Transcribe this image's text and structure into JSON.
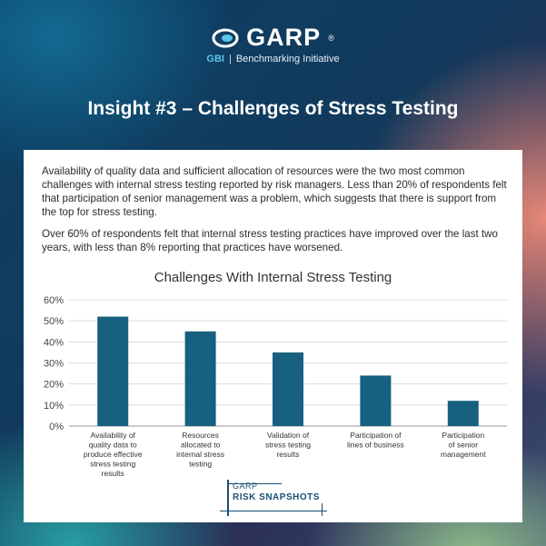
{
  "brand": {
    "logo": "GARP",
    "reg": "®",
    "sub_code": "GBI",
    "sub_sep": "|",
    "sub_name": "Benchmarking Initiative"
  },
  "title": "Insight #3 – Challenges of Stress Testing",
  "paragraphs": [
    "Availability of quality data and sufficient allocation of resources were the two most common challenges with internal stress testing reported by risk managers. Less than 20% of respondents felt that participation of senior management was a problem, which suggests that there is support from the top for stress testing.",
    "Over 60% of respondents felt that internal stress testing practices have improved over the last two years, with less than 8% reporting that practices have worsened."
  ],
  "chart_data": {
    "type": "bar",
    "title": "Challenges With Internal Stress Testing",
    "categories": [
      [
        "Availability of",
        "quality data to",
        "produce effective",
        "stress testing",
        "results"
      ],
      [
        "Resources",
        "allocated to",
        "internal stress",
        "testing"
      ],
      [
        "Validation of",
        "stress testing",
        "results"
      ],
      [
        "Participation of",
        "lines of business"
      ],
      [
        "Participation",
        "of senior",
        "management"
      ]
    ],
    "values": [
      52,
      45,
      35,
      24,
      12
    ],
    "ylim": [
      0,
      60
    ],
    "yticks": [
      0,
      10,
      20,
      30,
      40,
      50,
      60
    ],
    "ytick_labels": [
      "0%",
      "10%",
      "20%",
      "30%",
      "40%",
      "50%",
      "60%"
    ],
    "grid": true,
    "bar_color": "#17607f",
    "xlabel": "",
    "ylabel": ""
  },
  "footer": {
    "garp": "GARP",
    "snapshots": "RISK SNAPSHOTS"
  },
  "colors": {
    "accent": "#5fc3e8",
    "bar": "#17607f",
    "snap": "#1a4e74"
  }
}
